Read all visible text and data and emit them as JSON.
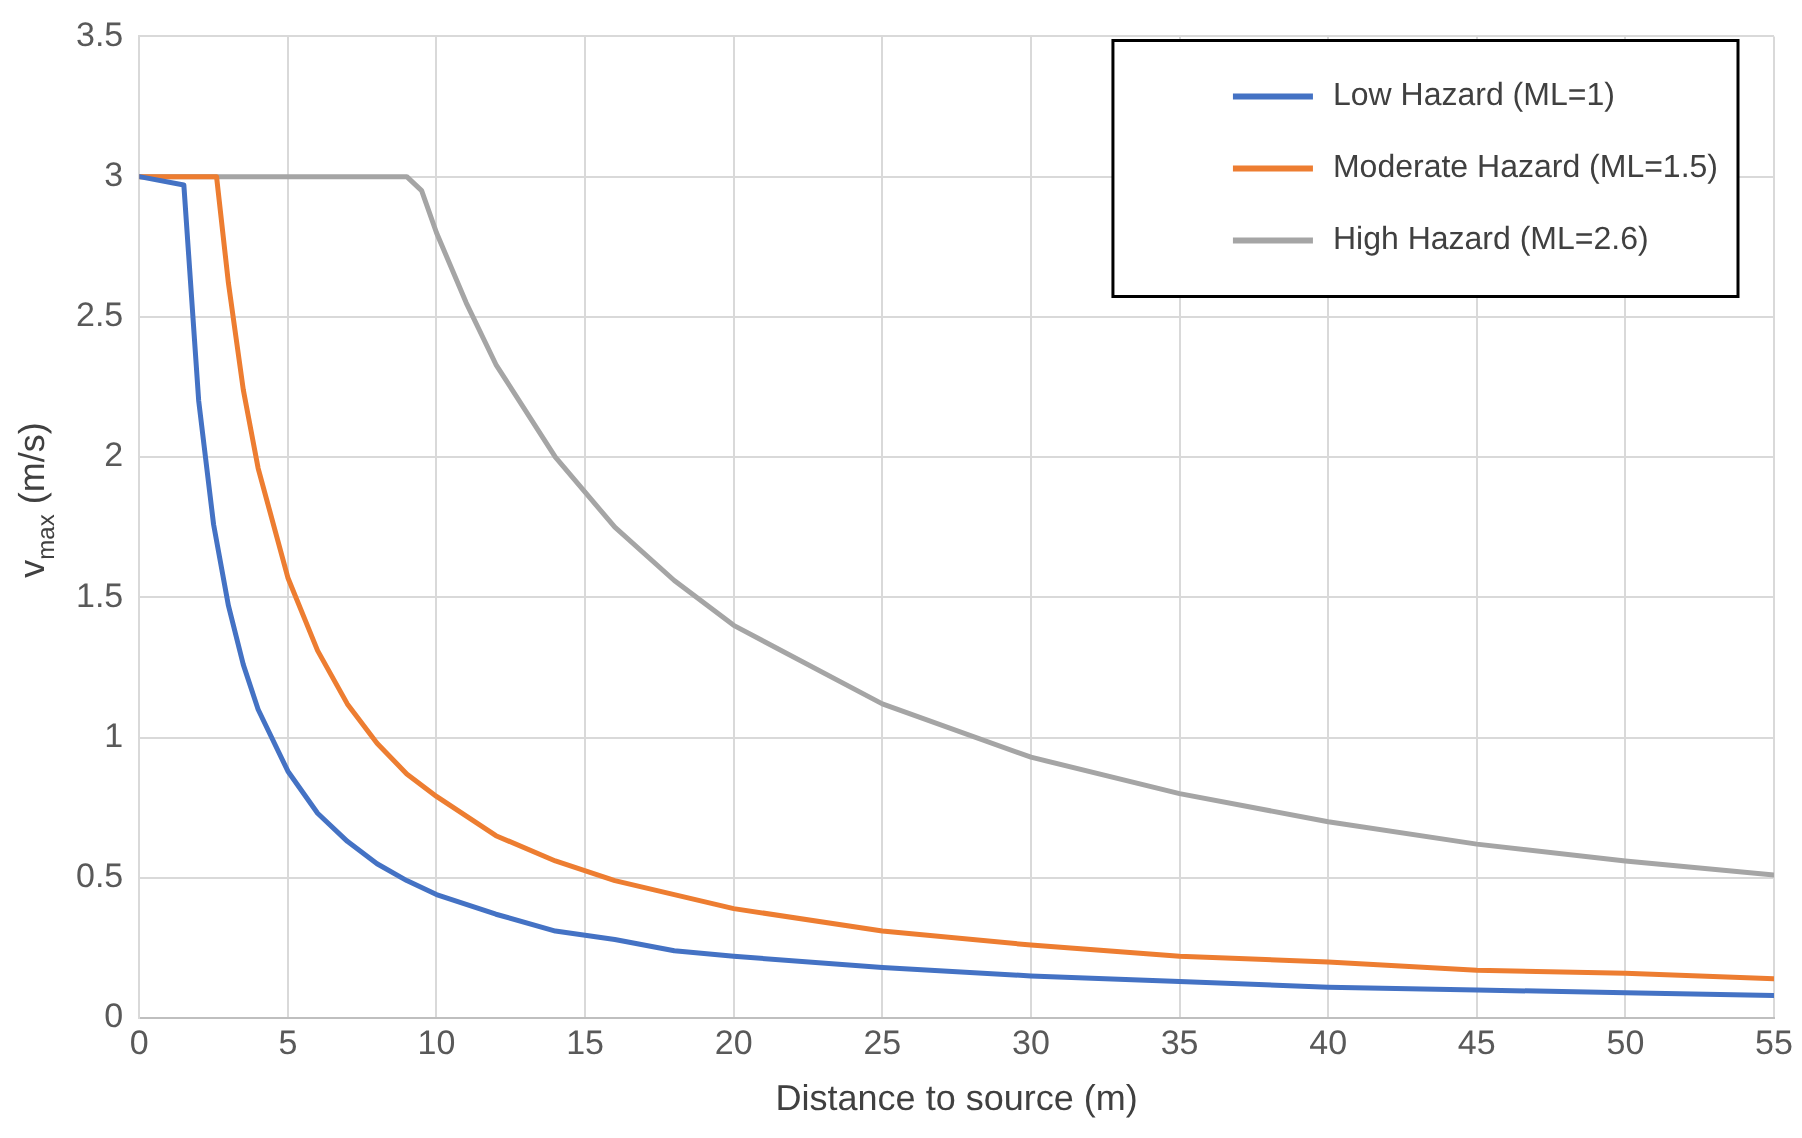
{
  "chart_data": {
    "type": "line",
    "xlabel": "Distance to source (m)",
    "ylabel": "v$_{max}$ (m/s)",
    "xlim": [
      0,
      55
    ],
    "xticks": [
      0,
      5,
      10,
      15,
      20,
      25,
      30,
      35,
      40,
      45,
      50,
      55
    ],
    "ylim": [
      0,
      3.5
    ],
    "yticks": [
      0,
      0.5,
      1,
      1.5,
      2,
      2.5,
      3,
      3.5
    ],
    "grid": true,
    "legend": "top right",
    "marker": "none",
    "line_style": "solid",
    "series": [
      {
        "name": "Low Hazard (ML=1)",
        "color": "#4472c4",
        "x": [
          0,
          1.5,
          2,
          2.5,
          3,
          3.5,
          4,
          5,
          6,
          7,
          8,
          9,
          10,
          12,
          14,
          16,
          18,
          20,
          25,
          30,
          35,
          40,
          45,
          50,
          55
        ],
        "values": [
          3,
          2.97,
          2.2,
          1.76,
          1.47,
          1.26,
          1.1,
          0.88,
          0.73,
          0.63,
          0.55,
          0.49,
          0.44,
          0.37,
          0.31,
          0.28,
          0.24,
          0.22,
          0.18,
          0.15,
          0.13,
          0.11,
          0.1,
          0.09,
          0.08
        ]
      },
      {
        "name": "Moderate Hazard (ML=1.5)",
        "color": "#ed7d31",
        "x": [
          0,
          2.6,
          3,
          3.5,
          4,
          5,
          6,
          7,
          8,
          9,
          10,
          12,
          14,
          16,
          18,
          20,
          25,
          30,
          35,
          40,
          45,
          50,
          55
        ],
        "values": [
          3,
          3,
          2.62,
          2.24,
          1.96,
          1.57,
          1.31,
          1.12,
          0.98,
          0.87,
          0.79,
          0.65,
          0.56,
          0.49,
          0.44,
          0.39,
          0.31,
          0.26,
          0.22,
          0.2,
          0.17,
          0.16,
          0.14
        ]
      },
      {
        "name": "High Hazard (ML=2.6)",
        "color": "#a5a5a5",
        "x": [
          0,
          9,
          9.5,
          10,
          11,
          12,
          14,
          16,
          18,
          20,
          25,
          30,
          35,
          40,
          45,
          50,
          55
        ],
        "values": [
          3,
          3,
          2.95,
          2.8,
          2.55,
          2.33,
          2,
          1.75,
          1.56,
          1.4,
          1.12,
          0.93,
          0.8,
          0.7,
          0.62,
          0.56,
          0.51
        ]
      }
    ]
  }
}
